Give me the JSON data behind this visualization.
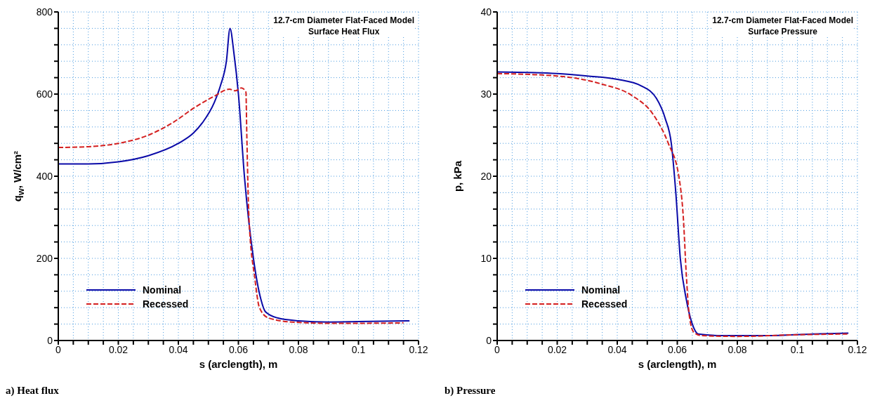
{
  "chart_data": [
    {
      "type": "line",
      "title": "12.7-cm Diameter Flat-Faced Model",
      "subtitle": "Surface Heat Flux",
      "xlabel": "s (arclength), m",
      "ylabel": "q$_{w}$, W/cm²",
      "annotations": [
        "a) Heat flux"
      ],
      "series": [
        {
          "name": "Nominal",
          "color": "#0a0aa8",
          "line_style": "solid",
          "x": [
            0,
            0.01,
            0.02,
            0.03,
            0.04,
            0.045,
            0.048,
            0.052,
            0.054,
            0.056,
            0.0572,
            0.0585,
            0.06,
            0.062,
            0.065,
            0.0675,
            0.069,
            0.073,
            0.08,
            0.09,
            0.1,
            0.117
          ],
          "values": [
            430,
            430,
            435,
            450,
            480,
            505,
            530,
            580,
            620,
            680,
            760,
            700,
            600,
            400,
            200,
            100,
            70,
            55,
            48,
            45,
            46,
            48
          ]
        },
        {
          "name": "Recessed",
          "color": "#d42020",
          "line_style": "dashed",
          "x": [
            0,
            0.01,
            0.02,
            0.03,
            0.038,
            0.046,
            0.052,
            0.057,
            0.059,
            0.061,
            0.0625,
            0.0628,
            0.0635,
            0.0655,
            0.067,
            0.07,
            0.078,
            0.09,
            0.1,
            0.115
          ],
          "values": [
            470,
            472,
            480,
            500,
            530,
            570,
            595,
            612,
            608,
            615,
            605,
            500,
            300,
            150,
            80,
            55,
            45,
            42,
            42,
            43
          ]
        }
      ],
      "xlim": [
        0,
        0.12
      ],
      "xticks": [
        0,
        {
          "value": 0.005,
          "label": null
        },
        0.02,
        {
          "value": 0.01,
          "label": null
        },
        {
          "value": 0.015,
          "label": null
        },
        {
          "value": 0.025,
          "label": null
        },
        {
          "value": 0.03,
          "label": null
        },
        {
          "value": 0.035,
          "label": null
        },
        0.04,
        {
          "value": 0.045,
          "label": null
        },
        {
          "value": 0.05,
          "label": null
        },
        {
          "value": 0.055,
          "label": null
        },
        0.06,
        {
          "value": 0.065,
          "label": null
        },
        {
          "value": 0.07,
          "label": null
        },
        {
          "value": 0.075,
          "label": null
        },
        0.08,
        {
          "value": 0.085,
          "label": null
        },
        {
          "value": 0.09,
          "label": null
        },
        {
          "value": 0.095,
          "label": null
        },
        0.1,
        {
          "value": 0.105,
          "label": null
        },
        {
          "value": 0.11,
          "label": null
        },
        {
          "value": 0.115,
          "label": null
        },
        0.12
      ],
      "ylim": [
        0,
        800
      ],
      "yticks": [
        0,
        {
          "value": 40,
          "label": null
        },
        {
          "value": 80,
          "label": null
        },
        {
          "value": 120,
          "label": null
        },
        {
          "value": 160,
          "label": null
        },
        200,
        {
          "value": 240,
          "label": null
        },
        {
          "value": 280,
          "label": null
        },
        {
          "value": 320,
          "label": null
        },
        {
          "value": 360,
          "label": null
        },
        400,
        {
          "value": 440,
          "label": null
        },
        {
          "value": 480,
          "label": null
        },
        {
          "value": 520,
          "label": null
        },
        {
          "value": 560,
          "label": null
        },
        600,
        {
          "value": 640,
          "label": null
        },
        {
          "value": 680,
          "label": null
        },
        {
          "value": 720,
          "label": null
        },
        {
          "value": 760,
          "label": null
        },
        800
      ],
      "grid": true,
      "legend": "bottom left",
      "marker": "none"
    },
    {
      "type": "line",
      "title": "12.7-cm Diameter Flat-Faced Model",
      "subtitle": "Surface Pressure",
      "xlabel": "s (arclength), m",
      "ylabel": "p, kPa",
      "annotations": [
        "b) Pressure"
      ],
      "series": [
        {
          "name": "Nominal",
          "color": "#0a0aa8",
          "line_style": "solid",
          "x": [
            0,
            0.02,
            0.03,
            0.04,
            0.048,
            0.053,
            0.056,
            0.058,
            0.0595,
            0.061,
            0.063,
            0.065,
            0.067,
            0.075,
            0.09,
            0.105,
            0.117
          ],
          "values": [
            32.7,
            32.5,
            32.2,
            31.8,
            31,
            29.5,
            27,
            24,
            18,
            10,
            5,
            2,
            0.8,
            0.6,
            0.6,
            0.8,
            0.9
          ]
        },
        {
          "name": "Recessed",
          "color": "#d42020",
          "line_style": "dashed",
          "x": [
            0,
            0.02,
            0.035,
            0.045,
            0.052,
            0.057,
            0.0605,
            0.062,
            0.063,
            0.064,
            0.0655,
            0.068,
            0.08,
            0.1,
            0.117
          ],
          "values": [
            32.5,
            32.2,
            31.2,
            29.8,
            27.5,
            24,
            20,
            15,
            8,
            3,
            1,
            0.6,
            0.5,
            0.7,
            0.8
          ]
        }
      ],
      "xlim": [
        0,
        0.12
      ],
      "xticks": [
        0,
        {
          "value": 0.005,
          "label": null
        },
        {
          "value": 0.01,
          "label": null
        },
        {
          "value": 0.015,
          "label": null
        },
        0.02,
        {
          "value": 0.025,
          "label": null
        },
        {
          "value": 0.03,
          "label": null
        },
        {
          "value": 0.035,
          "label": null
        },
        0.04,
        {
          "value": 0.045,
          "label": null
        },
        {
          "value": 0.05,
          "label": null
        },
        {
          "value": 0.055,
          "label": null
        },
        0.06,
        {
          "value": 0.065,
          "label": null
        },
        {
          "value": 0.07,
          "label": null
        },
        {
          "value": 0.075,
          "label": null
        },
        0.08,
        {
          "value": 0.085,
          "label": null
        },
        {
          "value": 0.09,
          "label": null
        },
        {
          "value": 0.095,
          "label": null
        },
        0.1,
        {
          "value": 0.105,
          "label": null
        },
        {
          "value": 0.11,
          "label": null
        },
        {
          "value": 0.115,
          "label": null
        },
        0.12
      ],
      "ylim": [
        0,
        40
      ],
      "yticks": [
        0,
        {
          "value": 2,
          "label": null
        },
        {
          "value": 4,
          "label": null
        },
        {
          "value": 6,
          "label": null
        },
        {
          "value": 8,
          "label": null
        },
        10,
        {
          "value": 12,
          "label": null
        },
        {
          "value": 14,
          "label": null
        },
        {
          "value": 16,
          "label": null
        },
        {
          "value": 18,
          "label": null
        },
        20,
        {
          "value": 22,
          "label": null
        },
        {
          "value": 24,
          "label": null
        },
        {
          "value": 26,
          "label": null
        },
        {
          "value": 28,
          "label": null
        },
        30,
        {
          "value": 32,
          "label": null
        },
        {
          "value": 34,
          "label": null
        },
        {
          "value": 36,
          "label": null
        },
        {
          "value": 38,
          "label": null
        },
        40
      ],
      "grid": true,
      "legend": "bottom left",
      "marker": "none"
    }
  ]
}
